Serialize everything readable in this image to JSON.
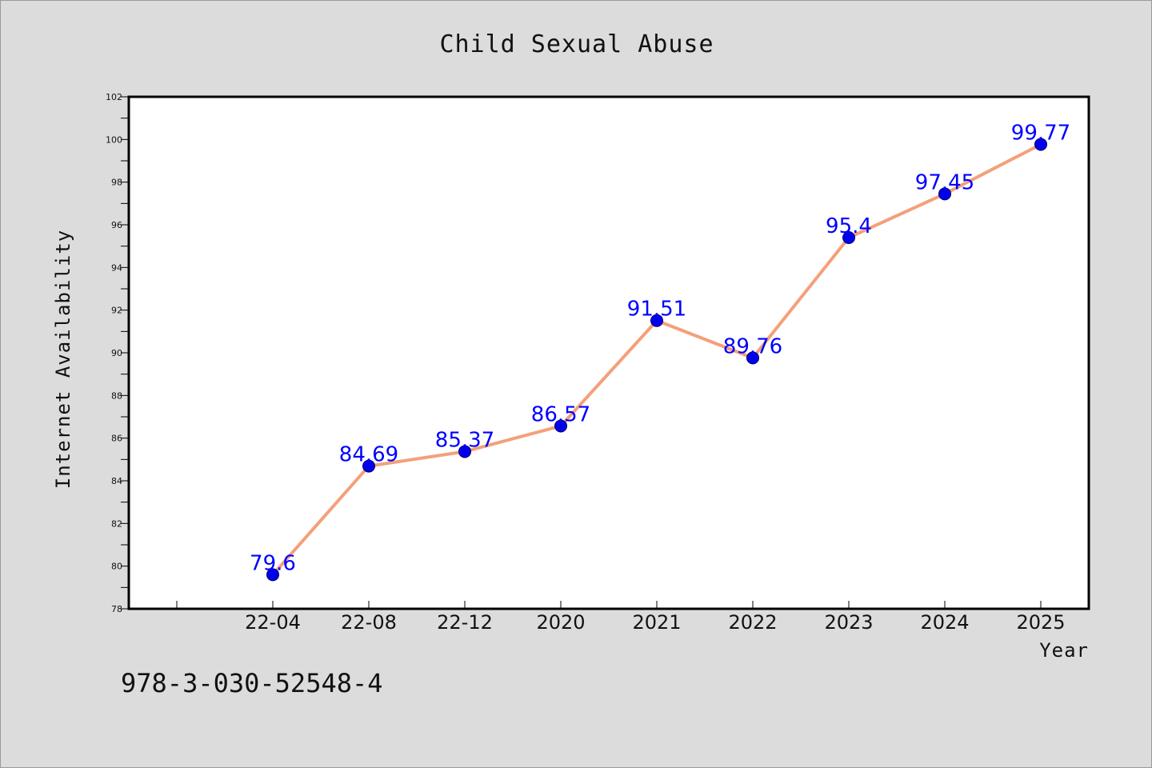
{
  "chart_data": {
    "type": "line",
    "title": "Child Sexual Abuse",
    "xlabel": "Year",
    "ylabel": "Internet Availability",
    "categories": [
      "22-04",
      "22-08",
      "22-12",
      "2020",
      "2021",
      "2022",
      "2023",
      "2024",
      "2025"
    ],
    "series": [
      {
        "values": [
          79.6,
          84.69,
          85.37,
          86.57,
          91.51,
          89.76,
          95.4,
          97.45,
          99.77
        ],
        "point_labels": [
          "79.6",
          "84.69",
          "85.37",
          "86.57",
          "91.51",
          "89.76",
          "95.4",
          "97.45",
          "99.77"
        ]
      }
    ],
    "ylim": [
      78,
      102
    ],
    "yticks": [
      78,
      80,
      82,
      84,
      86,
      88,
      90,
      92,
      94,
      96,
      98,
      100,
      102
    ],
    "grid": false,
    "legend": "none"
  },
  "footer": {
    "text": "978-3-030-52548-4"
  },
  "colors": {
    "background": "#dcdcdc",
    "plot_background": "#ffffff",
    "line": "#f4a07a",
    "marker": "#0000ee",
    "marker_edge": "#000066",
    "data_label": "#0000ff"
  }
}
